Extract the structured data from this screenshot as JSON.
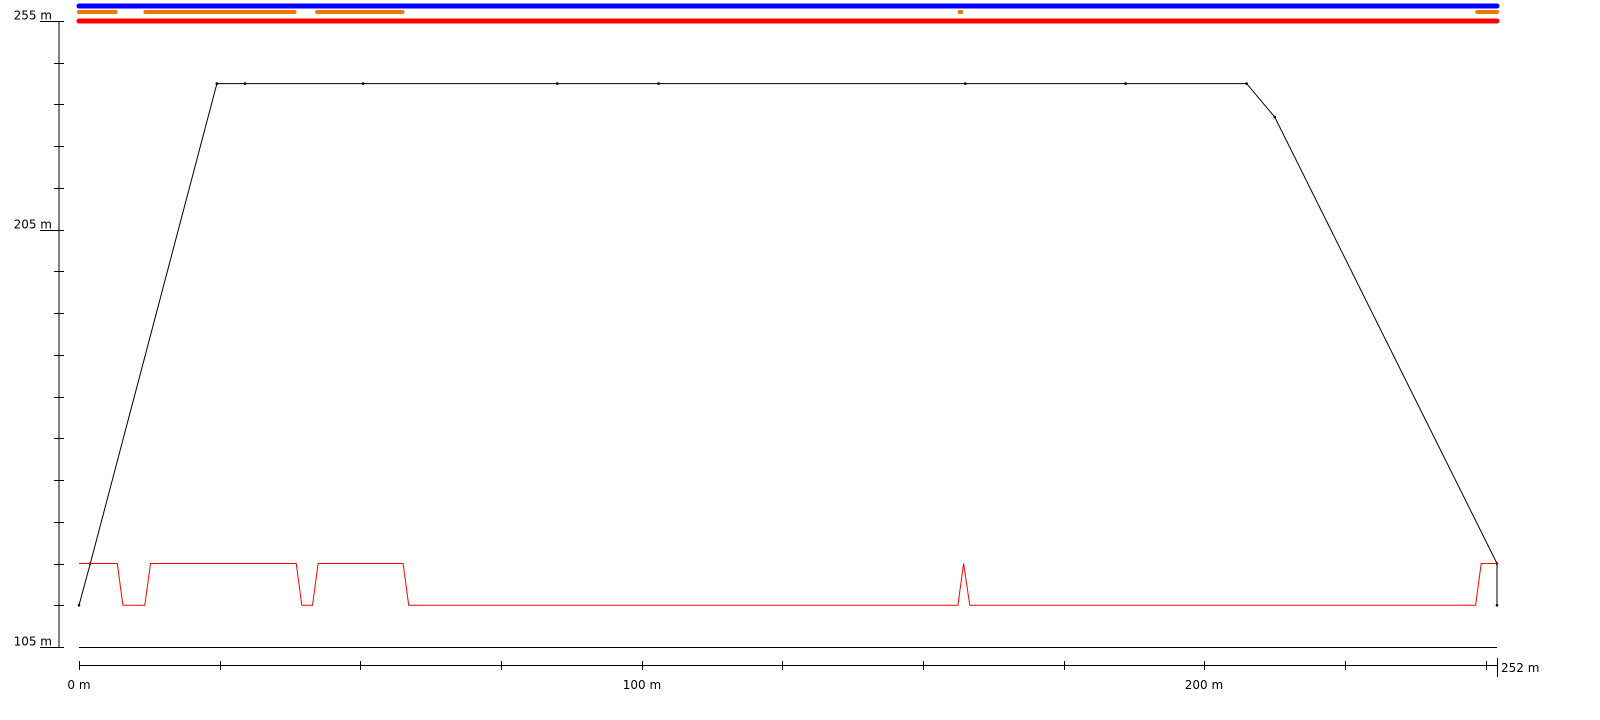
{
  "chart_data": {
    "type": "line",
    "title": "",
    "xlabel": "",
    "ylabel": "",
    "xlim": [
      0,
      252
    ],
    "ylim": [
      105,
      255
    ],
    "x_tick_labels": [
      {
        "value": 0,
        "label": "0 m"
      },
      {
        "value": 100,
        "label": "100 m"
      },
      {
        "value": 200,
        "label": "200 m"
      },
      {
        "value": 252,
        "label": "252 m"
      }
    ],
    "y_tick_labels": [
      {
        "value": 255,
        "label": "255 m"
      },
      {
        "value": 205,
        "label": "205 m"
      },
      {
        "value": 105,
        "label": "105 m"
      }
    ],
    "x_minor_ticks": [
      0,
      25,
      50,
      75,
      100,
      125,
      150,
      175,
      200,
      225,
      250,
      252
    ],
    "y_minor_ticks": [
      105,
      115,
      125,
      135,
      145,
      155,
      165,
      175,
      185,
      195,
      205,
      215,
      225,
      235,
      245,
      255
    ],
    "grid": false,
    "series": [
      {
        "color": "#000000",
        "points": [
          [
            0,
            115
          ],
          [
            2,
            125
          ],
          [
            24.5,
            240
          ],
          [
            29.5,
            240
          ],
          [
            50.5,
            240
          ],
          [
            85,
            240
          ],
          [
            103,
            240
          ],
          [
            157.5,
            240
          ],
          [
            186,
            240
          ],
          [
            207.5,
            240
          ],
          [
            212.5,
            232
          ],
          [
            252,
            125
          ],
          [
            252,
            115
          ]
        ]
      },
      {
        "color": "#ff0000",
        "points": [
          [
            0,
            125
          ],
          [
            6.8,
            125
          ],
          [
            7.8,
            115
          ],
          [
            11.7,
            115
          ],
          [
            12.7,
            125
          ],
          [
            38.6,
            125
          ],
          [
            39.6,
            115
          ],
          [
            41.5,
            115
          ],
          [
            42.5,
            125
          ],
          [
            57.6,
            125
          ],
          [
            58.6,
            115
          ],
          [
            156.2,
            115
          ],
          [
            157.2,
            125
          ],
          [
            158.3,
            115
          ],
          [
            248.2,
            115
          ],
          [
            249.2,
            125
          ],
          [
            252,
            125
          ]
        ]
      }
    ],
    "bands": [
      {
        "color": "#0000ff",
        "level": 1,
        "segments": [
          [
            0,
            252
          ]
        ]
      },
      {
        "color": "#ee7700",
        "level": 2,
        "segments": [
          [
            0,
            6.5
          ],
          [
            11.8,
            38.3
          ],
          [
            42.3,
            57.5
          ],
          [
            156.5,
            156.8
          ],
          [
            248.5,
            252
          ]
        ]
      },
      {
        "color": "#ff0000",
        "level": 3,
        "segments": [
          [
            0,
            252
          ]
        ]
      }
    ]
  }
}
